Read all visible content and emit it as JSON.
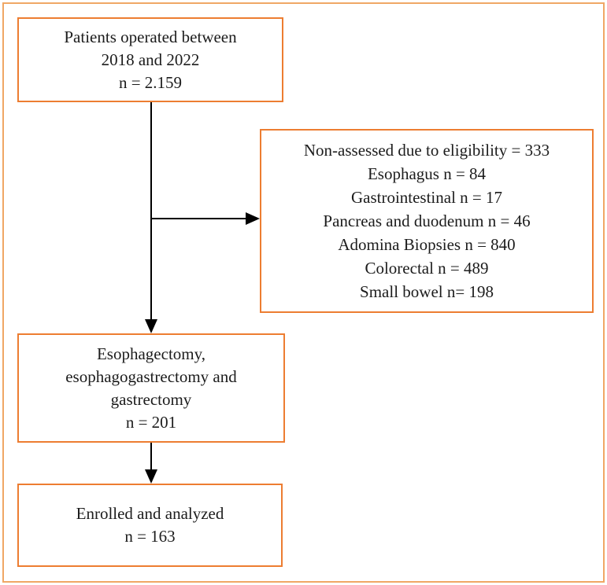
{
  "colors": {
    "box_border": "#ed7d31",
    "frame_border": "#f0a765",
    "text": "#1c1c1c",
    "arrow": "#000000",
    "background": "#ffffff"
  },
  "flowchart": {
    "top_box": {
      "lines": [
        "Patients operated between",
        "2018 and 2022",
        "n = 2.159"
      ]
    },
    "excluded_box": {
      "lines": [
        "Non-assessed due to eligibility = 333",
        "Esophagus n = 84",
        "Gastrointestinal n = 17",
        "Pancreas and duodenum n = 46",
        "Adomina Biopsies n = 840",
        "Colorectal n = 489",
        "Small bowel n= 198"
      ]
    },
    "surgery_box": {
      "lines": [
        "Esophagectomy,",
        "esophagogastrectomy and",
        "gastrectomy",
        "n = 201"
      ]
    },
    "final_box": {
      "lines": [
        "Enrolled and analyzed",
        "n = 163"
      ]
    }
  }
}
